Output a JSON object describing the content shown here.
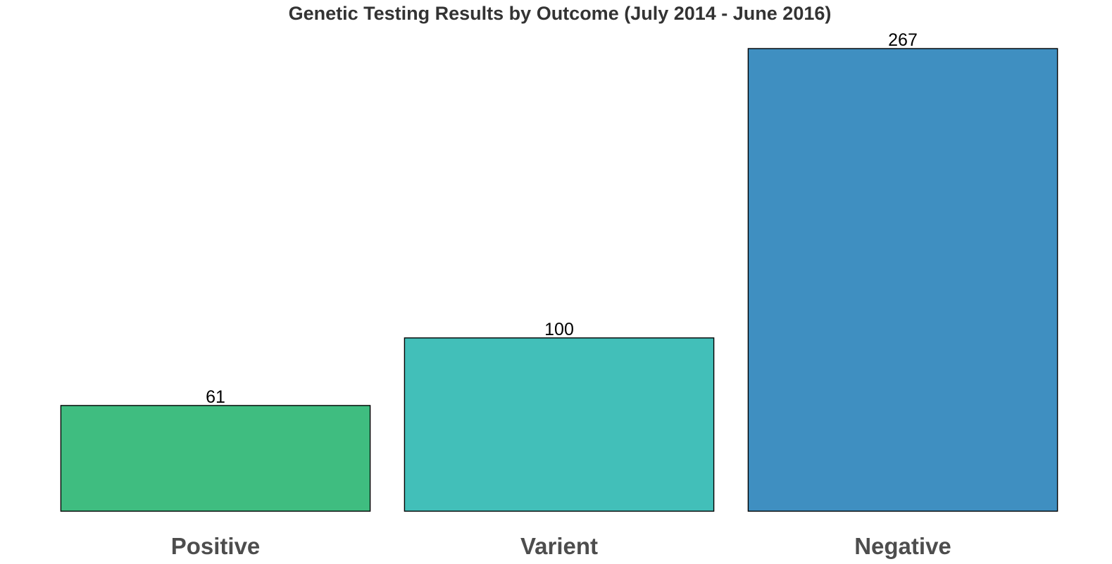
{
  "chart_data": {
    "type": "bar",
    "title": "Genetic Testing Results by Outcome (July 2014 - June 2016)",
    "xlabel": "",
    "ylabel": "",
    "categories": [
      "Positive",
      "Varient",
      "Negative"
    ],
    "values": [
      61,
      100,
      267
    ],
    "colors": [
      "#3fbd80",
      "#42bfb9",
      "#3f8fc1"
    ],
    "ylim": [
      0,
      267
    ],
    "grid": false,
    "legend": "none",
    "data_labels": true
  }
}
